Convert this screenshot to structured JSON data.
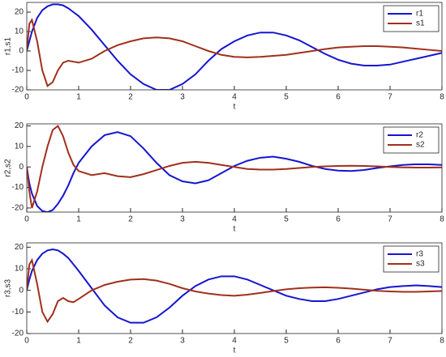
{
  "chart_data": [
    {
      "type": "line",
      "xlabel": "t",
      "ylabel": "r1,s1",
      "legend": "upper right",
      "x": [
        0,
        0.05,
        0.1,
        0.2,
        0.3,
        0.4,
        0.5,
        0.6,
        0.7,
        0.8,
        0.9,
        1,
        1.25,
        1.5,
        1.75,
        2,
        2.25,
        2.5,
        2.75,
        3,
        3.25,
        3.5,
        3.75,
        4,
        4.25,
        4.5,
        4.75,
        5,
        5.25,
        5.5,
        5.75,
        6,
        6.25,
        6.5,
        6.75,
        7,
        7.25,
        7.5,
        7.75,
        8
      ],
      "xlim": [
        0,
        8
      ],
      "xticks": [
        0,
        1,
        2,
        3,
        4,
        5,
        6,
        7,
        8
      ],
      "ylim": [
        -20,
        25
      ],
      "yticks": [
        -20,
        -10,
        0,
        10,
        20
      ],
      "series": [
        {
          "name": "r1",
          "color": "#1515d0",
          "values": [
            0,
            5,
            10,
            17,
            21,
            23,
            24,
            24,
            23.5,
            22,
            20,
            18,
            11,
            3,
            -5,
            -12,
            -17,
            -20,
            -20,
            -17,
            -12,
            -5,
            1,
            5,
            8,
            9.5,
            9.5,
            8,
            5.5,
            2,
            -1.5,
            -4.5,
            -6.5,
            -7.5,
            -7.5,
            -7,
            -5.5,
            -4,
            -2.5,
            -1
          ]
        },
        {
          "name": "s1",
          "color": "#a0301c",
          "values": [
            0,
            14,
            16,
            5,
            -10,
            -18,
            -16,
            -10,
            -6,
            -5,
            -5.5,
            -6,
            -4,
            0,
            3,
            5,
            6.5,
            7,
            6.5,
            5,
            2.5,
            0,
            -2,
            -3,
            -3.3,
            -3,
            -2.5,
            -2,
            -1,
            0,
            1,
            1.8,
            2.2,
            2.5,
            2.5,
            2.2,
            1.8,
            1.2,
            0.6,
            0
          ]
        }
      ]
    },
    {
      "type": "line",
      "xlabel": "t",
      "ylabel": "r2,s2",
      "legend": "upper right",
      "x": [
        0,
        0.05,
        0.1,
        0.2,
        0.3,
        0.4,
        0.5,
        0.6,
        0.7,
        0.8,
        0.9,
        1,
        1.25,
        1.5,
        1.75,
        2,
        2.25,
        2.5,
        2.75,
        3,
        3.25,
        3.5,
        3.75,
        4,
        4.25,
        4.5,
        4.75,
        5,
        5.25,
        5.5,
        5.75,
        6,
        6.25,
        6.5,
        6.75,
        7,
        7.25,
        7.5,
        7.75,
        8
      ],
      "xlim": [
        0,
        8
      ],
      "xticks": [
        0,
        1,
        2,
        3,
        4,
        5,
        6,
        7,
        8
      ],
      "ylim": [
        -22,
        21
      ],
      "yticks": [
        -20,
        -10,
        0,
        10,
        20
      ],
      "series": [
        {
          "name": "r2",
          "color": "#1515d0",
          "values": [
            0,
            -8,
            -13,
            -19,
            -21.5,
            -22,
            -21,
            -18,
            -14,
            -9,
            -3,
            2,
            10,
            15.5,
            17,
            15,
            9,
            2,
            -4,
            -7,
            -8,
            -6.5,
            -3,
            0.5,
            3,
            4.5,
            5,
            4,
            2.5,
            0.5,
            -1,
            -1.8,
            -2,
            -1.5,
            -0.5,
            0.3,
            1,
            1.3,
            1.3,
            1
          ]
        },
        {
          "name": "s2",
          "color": "#a0301c",
          "values": [
            0,
            -12,
            -20,
            -12,
            0,
            10,
            18,
            20,
            15,
            7,
            1,
            -2,
            -4,
            -3,
            -4.5,
            -5,
            -3.5,
            -1.5,
            0.5,
            2,
            2.5,
            2,
            1,
            0,
            -1,
            -1.3,
            -1.3,
            -1,
            -0.5,
            0,
            0.3,
            0.5,
            0.6,
            0.5,
            0.3,
            0,
            -0.2,
            -0.3,
            -0.3,
            -0.2
          ]
        }
      ]
    },
    {
      "type": "line",
      "xlabel": "t",
      "ylabel": "r3,s3",
      "legend": "upper right",
      "x": [
        0,
        0.05,
        0.1,
        0.2,
        0.3,
        0.4,
        0.5,
        0.6,
        0.7,
        0.8,
        0.9,
        1,
        1.25,
        1.5,
        1.75,
        2,
        2.25,
        2.5,
        2.75,
        3,
        3.25,
        3.5,
        3.75,
        4,
        4.25,
        4.5,
        4.75,
        5,
        5.25,
        5.5,
        5.75,
        6,
        6.25,
        6.5,
        6.75,
        7,
        7.25,
        7.5,
        7.75,
        8
      ],
      "xlim": [
        0,
        8
      ],
      "xticks": [
        0,
        1,
        2,
        3,
        4,
        5,
        6,
        7,
        8
      ],
      "ylim": [
        -20,
        22
      ],
      "yticks": [
        -20,
        -10,
        0,
        10,
        20
      ],
      "series": [
        {
          "name": "r3",
          "color": "#1515d0",
          "values": [
            0,
            5,
            9,
            14,
            17,
            18.5,
            19,
            18.5,
            17,
            15,
            12,
            9,
            1,
            -7,
            -12.5,
            -15,
            -15,
            -12.5,
            -8,
            -2.5,
            2,
            5,
            6.5,
            6.5,
            5,
            2.5,
            0,
            -2.5,
            -4,
            -5,
            -5,
            -4,
            -2.5,
            -1,
            0.5,
            1.5,
            2,
            2.3,
            2,
            1.5
          ]
        },
        {
          "name": "s3",
          "color": "#a0301c",
          "values": [
            0,
            12,
            14,
            3,
            -10,
            -14.5,
            -11,
            -5,
            -3.5,
            -5,
            -5.5,
            -4,
            0,
            2.5,
            4,
            5,
            5.2,
            4.5,
            3,
            1,
            -0.5,
            -1.5,
            -2.2,
            -2.5,
            -2,
            -1.2,
            -0.3,
            0.5,
            1,
            1.3,
            1.4,
            1.2,
            0.8,
            0.3,
            -0.2,
            -0.5,
            -0.7,
            -0.7,
            -0.5,
            -0.3
          ]
        }
      ]
    }
  ]
}
